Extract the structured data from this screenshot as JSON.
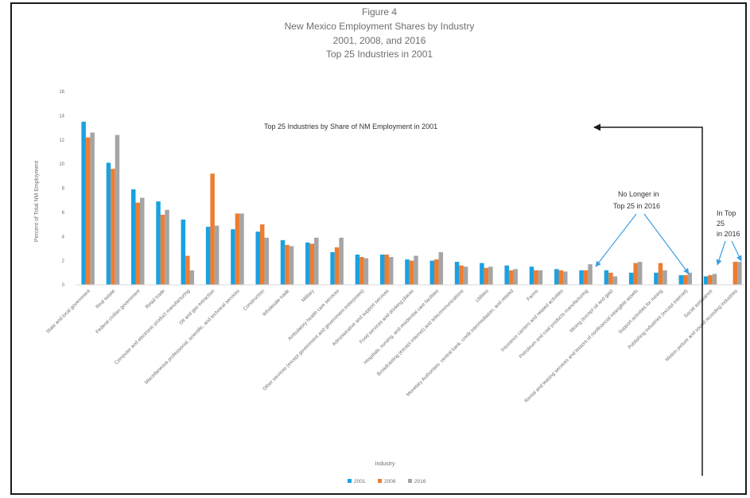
{
  "chart_data": {
    "type": "bar",
    "title_lines": [
      "Figure 4",
      "New Mexico Employment Shares by Industry",
      "2001, 2008, and 2016",
      "Top 25 Industries in 2001"
    ],
    "xlabel": "Industry",
    "ylabel": "Percent of Total NM Employment",
    "ylim": [
      0,
      16
    ],
    "yticks": [
      0,
      2,
      4,
      6,
      8,
      10,
      12,
      14,
      16
    ],
    "grid": false,
    "legend_position": "bottom",
    "colors": [
      "#1ba1e2",
      "#ed7d31",
      "#a5a5a5"
    ],
    "categories": [
      "State and local government",
      "Real estate",
      "Federal civilian government",
      "Retail trade",
      "Computer and electronic product manufacturing",
      "Oil and gas extraction",
      "Miscellaneous professional, scientific, and technical services",
      "Construction",
      "Wholesale trade",
      "Military",
      "Ambulatory health care services",
      "Other services (except government and government enterprises)",
      "Administrative and support services",
      "Food services and drinking places",
      "Hospitals, nursing, and residential care facilities",
      "Broadcasting (except internet) and telecommunications",
      "Utilities",
      "Monetary Authorities- central bank, credit intermediation, and related",
      "Farms",
      "Insurance carriers and related activities",
      "Petroleum and coal products manufacturing",
      "Mining (except oil and gas)",
      "Rental and leasing services and lessors of nonfinancial intangible assets",
      "Support activities for mining",
      "Publishing industries (except internet)",
      "Social assistance",
      "Motion picture and sound recording industries"
    ],
    "series": [
      {
        "name": "2001",
        "values": [
          13.5,
          10.1,
          7.9,
          6.9,
          5.4,
          4.8,
          4.6,
          4.4,
          3.7,
          3.5,
          2.7,
          2.5,
          2.5,
          2.1,
          2.0,
          1.9,
          1.8,
          1.6,
          1.5,
          1.3,
          1.2,
          1.2,
          1.0,
          1.0,
          0.8,
          0.7,
          0.0
        ]
      },
      {
        "name": "2008",
        "values": [
          12.2,
          9.6,
          6.8,
          5.8,
          2.4,
          9.2,
          5.9,
          5.0,
          3.3,
          3.4,
          3.1,
          2.3,
          2.5,
          2.0,
          2.1,
          1.6,
          1.4,
          1.2,
          1.2,
          1.2,
          1.2,
          1.0,
          1.8,
          1.8,
          0.8,
          0.8,
          1.9
        ]
      },
      {
        "name": "2016",
        "values": [
          12.6,
          12.4,
          7.2,
          6.2,
          1.2,
          4.9,
          5.9,
          3.9,
          3.2,
          3.9,
          3.9,
          2.2,
          2.3,
          2.4,
          2.7,
          1.5,
          1.5,
          1.3,
          1.2,
          1.1,
          1.7,
          0.7,
          1.9,
          1.2,
          1.0,
          0.9,
          1.9
        ]
      }
    ],
    "annotations": {
      "top25": "Top 25 Industries by Share of NM Employment in 2001",
      "no_longer_line1": "No Longer in",
      "no_longer_line2": "Top 25 in 2016",
      "in_top_line1": "In Top",
      "in_top_line2": "25",
      "in_top_line3": "in 2016"
    }
  }
}
